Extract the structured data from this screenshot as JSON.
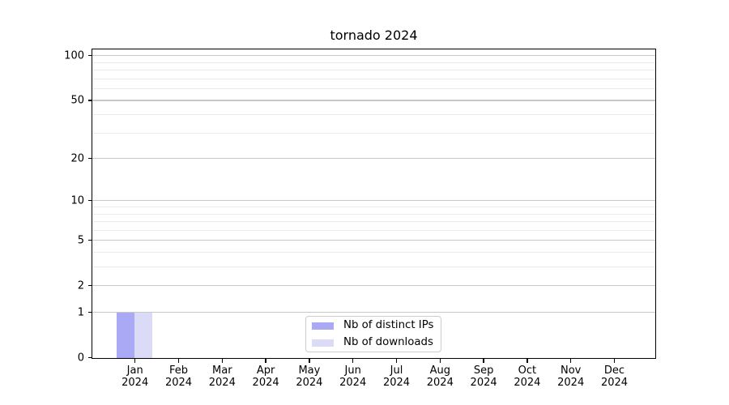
{
  "chart_data": {
    "type": "bar",
    "title": "tornado 2024",
    "year_label": "2024",
    "categories": [
      "Jan",
      "Feb",
      "Mar",
      "Apr",
      "May",
      "Jun",
      "Jul",
      "Aug",
      "Sep",
      "Oct",
      "Nov",
      "Dec"
    ],
    "series": [
      {
        "name": "Nb of distinct IPs",
        "color": "#a9a9f5",
        "values": [
          1,
          0,
          0,
          0,
          0,
          0,
          0,
          0,
          0,
          0,
          0,
          0
        ]
      },
      {
        "name": "Nb of downloads",
        "color": "#dbdbf8",
        "values": [
          1,
          0,
          0,
          0,
          0,
          0,
          0,
          0,
          0,
          0,
          0,
          0
        ]
      }
    ],
    "yscale": "log1p",
    "ylim": [
      0,
      113
    ],
    "y_axis": {
      "major_ticks": [
        0,
        1,
        2,
        5,
        10,
        20,
        50,
        100
      ],
      "minor_gridlines": [
        3,
        4,
        6,
        7,
        8,
        9,
        30,
        40,
        60,
        70,
        80,
        90
      ]
    },
    "grid": true,
    "legend_position": "lower center",
    "colors": {
      "axis": "#000000",
      "major_grid": "#c8c8c8",
      "minor_grid": "#ebebeb",
      "background": "#ffffff"
    }
  }
}
